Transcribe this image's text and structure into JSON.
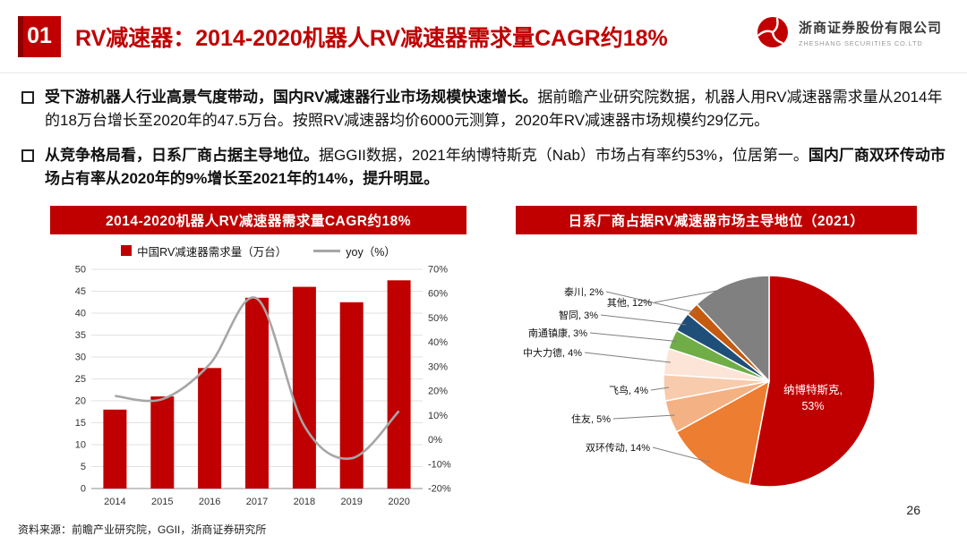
{
  "header": {
    "number": "01",
    "title": "RV减速器：2014-2020机器人RV减速器需求量CAGR约18%",
    "logo": {
      "company": "浙商证券股份有限公司",
      "company_en": "ZHESHANG SECURITIES CO.LTD"
    }
  },
  "bullets": [
    {
      "segments": [
        {
          "text": "受下游机器人行业高景气度带动，国内RV减速器行业市场规模快速增长。",
          "bold": true
        },
        {
          "text": "据前瞻产业研究院数据，机器人用RV减速器需求量从2014年的18万台增长至2020年的47.5万台。按照RV减速器均价6000元测算，2020年RV减速器市场规模约29亿元。",
          "bold": false
        }
      ]
    },
    {
      "segments": [
        {
          "text": "从竞争格局看，日系厂商占据主导地位。",
          "bold": true
        },
        {
          "text": "据GGII数据，2021年纳博特斯克（Nab）市场占有率约53%，位居第一。",
          "bold": false
        },
        {
          "text": "国内厂商双环传动市场占有率从2020年的9%增长至2021年的14%，提升明显。",
          "bold": true
        }
      ]
    }
  ],
  "chart_data": [
    {
      "type": "bar",
      "title": "2014-2020机器人RV减速器需求量CAGR约18%",
      "categories": [
        "2014",
        "2015",
        "2016",
        "2017",
        "2018",
        "2019",
        "2020"
      ],
      "series": [
        {
          "name": "中国RV减速器需求量（万台）",
          "type": "bar",
          "axis": "left",
          "color": "#c00000",
          "values": [
            18,
            21,
            27.5,
            43.5,
            46,
            42.5,
            47.5
          ]
        },
        {
          "name": "yoy（%）",
          "type": "line",
          "axis": "right",
          "color": "#a6a6a6",
          "values": [
            18,
            16.7,
            31,
            58,
            5.7,
            -7.6,
            11.8
          ]
        }
      ],
      "left_axis": {
        "min": 0,
        "max": 50,
        "step": 5
      },
      "right_axis": {
        "min": -20,
        "max": 70,
        "step": 10,
        "suffix": "%"
      },
      "legend_position": "top",
      "grid": true
    },
    {
      "type": "pie",
      "title": "日系厂商占据RV减速器市场主导地位（2021）",
      "labels": [
        "纳博特斯克",
        "双环传动",
        "住友",
        "飞鸟",
        "中大力德",
        "南通镇康",
        "智同",
        "泰川",
        "其他"
      ],
      "values": [
        53,
        14,
        5,
        4,
        4,
        3,
        3,
        2,
        12
      ],
      "colors": [
        "#c00000",
        "#ed7d31",
        "#f4b183",
        "#f8cbad",
        "#fce4d6",
        "#70ad47",
        "#1f4e79",
        "#c55a11",
        "#808080"
      ],
      "start_angle_deg": 0,
      "direction": "clockwise"
    }
  ],
  "footer": {
    "source": "资料来源：前瞻产业研究院，GGII，浙商证券研究所",
    "page": "26"
  },
  "colors": {
    "accent": "#c00000",
    "line_gray": "#a6a6a6"
  }
}
